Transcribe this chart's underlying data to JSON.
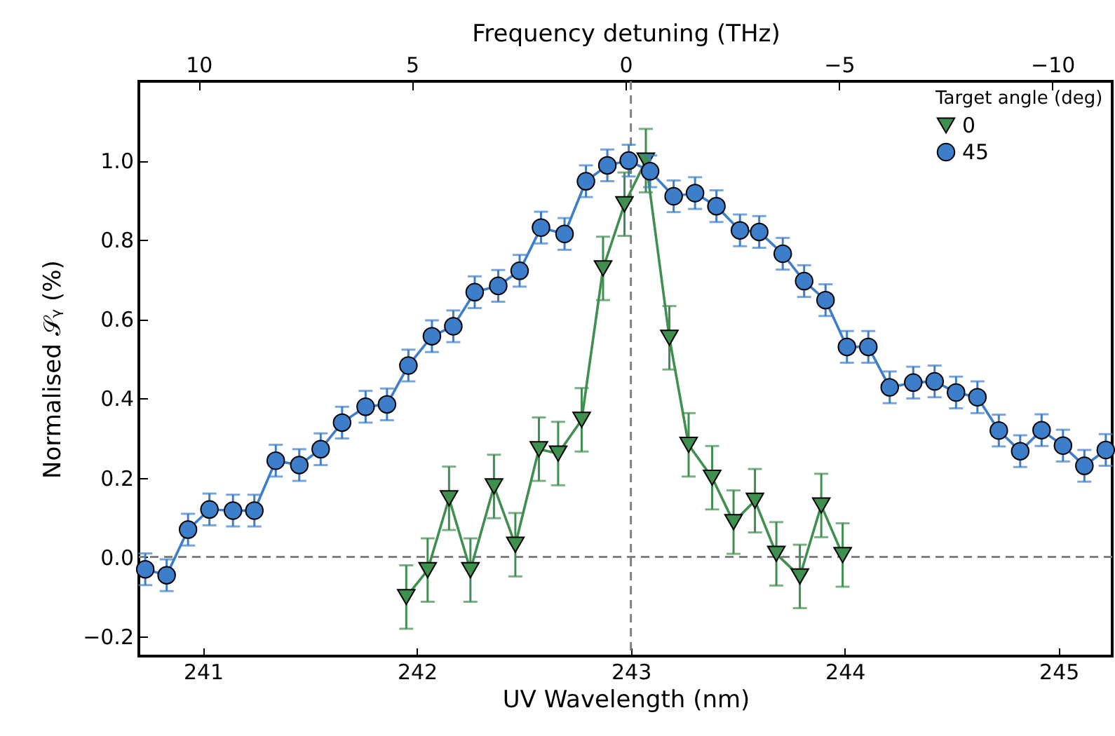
{
  "chart_data": {
    "type": "line",
    "xlabel": "UV Wavelength (nm)",
    "ylabel": "Normalised 𝒮ᵧ (%)",
    "x2label": "Frequency detuning (THz)",
    "legend_title": "Target angle (deg)",
    "xlim": [
      240.7,
      245.25
    ],
    "xticks": [
      241,
      242,
      243,
      244,
      245
    ],
    "x2lim": [
      11.4,
      -11.4
    ],
    "x2ticks": [
      10,
      5,
      0,
      {
        "value": -5,
        "label": "−5"
      },
      {
        "value": -10,
        "label": "−10"
      }
    ],
    "ylim": [
      -0.25,
      1.2
    ],
    "yticks": [
      {
        "value": -0.2,
        "label": "−0.2"
      },
      {
        "value": 0,
        "label": "0.0"
      },
      0.2,
      0.4,
      0.6,
      0.8,
      {
        "value": 1,
        "label": "1.0"
      }
    ],
    "series": [
      {
        "name": "0",
        "color": "#3f8f4e",
        "marker": "triangle",
        "x": [
          241.95,
          242.05,
          242.15,
          242.25,
          242.36,
          242.46,
          242.57,
          242.66,
          242.77,
          242.87,
          242.97,
          243.07,
          243.18,
          243.27,
          243.38,
          243.48,
          243.58,
          243.68,
          243.79,
          243.89,
          243.99
        ],
        "values": [
          -0.101,
          -0.033,
          0.148,
          -0.033,
          0.178,
          0.031,
          0.272,
          0.261,
          0.346,
          0.728,
          0.89,
          1.0,
          0.553,
          0.283,
          0.2,
          0.088,
          0.142,
          0.008,
          -0.049,
          0.13,
          0.005
        ],
        "errors": [
          0.08,
          0.08,
          0.08,
          0.08,
          0.08,
          0.08,
          0.08,
          0.08,
          0.08,
          0.08,
          0.08,
          0.08,
          0.08,
          0.08,
          0.08,
          0.08,
          0.08,
          0.08,
          0.08,
          0.08,
          0.08
        ]
      },
      {
        "name": "45",
        "color": "#3d7ecb",
        "marker": "circle",
        "x": [
          240.73,
          240.83,
          240.93,
          241.03,
          241.14,
          241.24,
          241.34,
          241.45,
          241.55,
          241.65,
          241.76,
          241.86,
          241.96,
          242.07,
          242.17,
          242.27,
          242.38,
          242.48,
          242.58,
          242.69,
          242.79,
          242.89,
          242.99,
          243.09,
          243.2,
          243.3,
          243.4,
          243.51,
          243.6,
          243.71,
          243.81,
          243.91,
          244.01,
          244.11,
          244.21,
          244.32,
          244.42,
          244.52,
          244.62,
          244.72,
          244.82,
          244.92,
          245.02,
          245.12,
          245.22
        ],
        "values": [
          -0.031,
          -0.046,
          0.069,
          0.12,
          0.117,
          0.117,
          0.243,
          0.232,
          0.272,
          0.339,
          0.379,
          0.385,
          0.483,
          0.557,
          0.582,
          0.668,
          0.684,
          0.722,
          0.831,
          0.815,
          0.948,
          0.988,
          1.0,
          0.973,
          0.91,
          0.918,
          0.885,
          0.824,
          0.82,
          0.765,
          0.696,
          0.648,
          0.53,
          0.53,
          0.428,
          0.44,
          0.443,
          0.415,
          0.403,
          0.319,
          0.267,
          0.32,
          0.281,
          0.23,
          0.27
        ],
        "errors": [
          0.04,
          0.04,
          0.04,
          0.04,
          0.04,
          0.04,
          0.04,
          0.04,
          0.04,
          0.04,
          0.04,
          0.04,
          0.04,
          0.04,
          0.04,
          0.04,
          0.04,
          0.04,
          0.04,
          0.04,
          0.04,
          0.04,
          0.04,
          0.04,
          0.04,
          0.04,
          0.04,
          0.04,
          0.04,
          0.04,
          0.04,
          0.04,
          0.04,
          0.04,
          0.04,
          0.04,
          0.04,
          0.04,
          0.04,
          0.04,
          0.04,
          0.04,
          0.04,
          0.04,
          0.04
        ]
      }
    ],
    "ref_lines": [
      {
        "axis": "y",
        "value": 0,
        "color": "#808080",
        "line_style": "dashed"
      },
      {
        "axis": "x",
        "value": 243,
        "color": "#808080",
        "line_style": "dashed"
      }
    ],
    "legend": "top right"
  }
}
